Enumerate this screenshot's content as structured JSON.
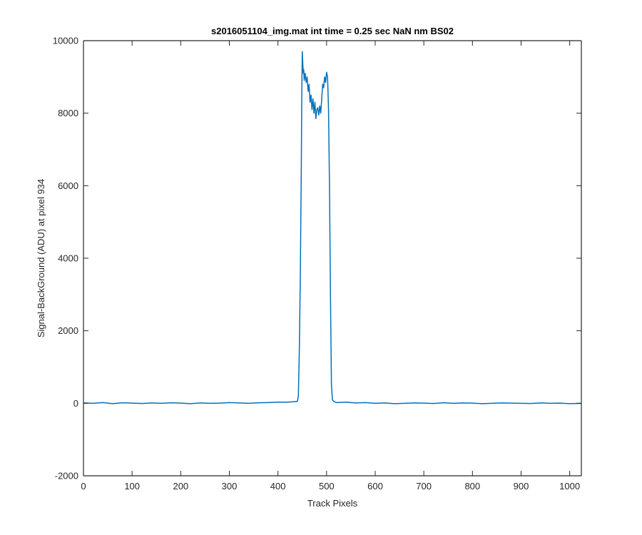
{
  "chart_data": {
    "type": "line",
    "title": "s2016051104_img.mat int time = 0.25 sec  NaN nm BS02",
    "xlabel": "Track Pixels",
    "ylabel": "Signal-BackGround (ADU) at pixel 934",
    "xlim": [
      0,
      1024
    ],
    "ylim": [
      -2000,
      10000
    ],
    "xticks": [
      0,
      100,
      200,
      300,
      400,
      500,
      600,
      700,
      800,
      900,
      1000
    ],
    "yticks": [
      -2000,
      0,
      2000,
      4000,
      6000,
      8000,
      10000
    ],
    "grid": false,
    "legend": "none",
    "series": [
      {
        "color": "#0072BD",
        "x": [
          0,
          20,
          40,
          60,
          80,
          100,
          120,
          140,
          160,
          180,
          200,
          220,
          240,
          260,
          280,
          300,
          320,
          340,
          360,
          380,
          400,
          420,
          440,
          442,
          444,
          446,
          448,
          449,
          450,
          451,
          452,
          453,
          454,
          456,
          458,
          460,
          462,
          464,
          466,
          468,
          470,
          472,
          474,
          476,
          478,
          480,
          482,
          484,
          486,
          488,
          490,
          492,
          494,
          496,
          498,
          500,
          502,
          504,
          506,
          508,
          510,
          512,
          514,
          516,
          520,
          540,
          560,
          580,
          600,
          620,
          640,
          660,
          680,
          700,
          720,
          740,
          760,
          780,
          800,
          820,
          840,
          860,
          880,
          900,
          920,
          940,
          960,
          980,
          1000,
          1024
        ],
        "y": [
          10,
          0,
          20,
          -10,
          15,
          5,
          -5,
          10,
          0,
          15,
          5,
          -10,
          10,
          0,
          5,
          20,
          10,
          0,
          15,
          20,
          30,
          30,
          50,
          200,
          1500,
          3500,
          6500,
          8500,
          9700,
          9400,
          9100,
          9200,
          8900,
          9100,
          8850,
          9000,
          8600,
          8800,
          8300,
          8500,
          8100,
          8400,
          8000,
          8300,
          7850,
          8100,
          8150,
          7950,
          8200,
          8000,
          8400,
          8800,
          8700,
          9000,
          8850,
          9130,
          9000,
          8100,
          6000,
          3000,
          500,
          100,
          60,
          40,
          20,
          30,
          10,
          20,
          0,
          10,
          -10,
          0,
          10,
          5,
          -5,
          15,
          0,
          10,
          5,
          -10,
          0,
          10,
          5,
          0,
          -5,
          10,
          0,
          5,
          -10,
          0
        ]
      }
    ]
  }
}
